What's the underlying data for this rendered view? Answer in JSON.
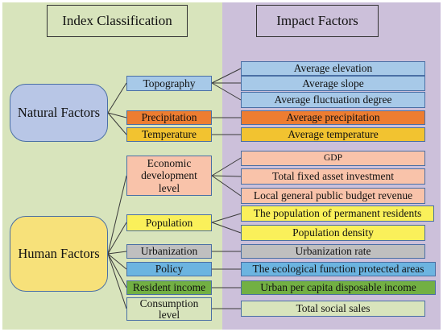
{
  "headers": {
    "left": "Index Classification",
    "right": "Impact Factors"
  },
  "groups": {
    "natural": "Natural  Factors",
    "human": "Human Factors"
  },
  "indices": {
    "topography": "Topography",
    "precipitation": "Precipitation",
    "temperature": "Temperature",
    "economic_line1": "Economic",
    "economic_line2": "development",
    "economic_line3": "level",
    "population": "Population",
    "urbanization": "Urbanization",
    "policy": "Policy",
    "resident_income": "Resident income",
    "consumption_line1": "Consumption",
    "consumption_line2": "level"
  },
  "factors": {
    "avg_elevation": "Average elevation",
    "avg_slope": "Average slope",
    "avg_fluctuation": "Average fluctuation degree",
    "avg_precipitation": "Average precipitation",
    "avg_temperature": "Average temperature",
    "gdp": "GDP",
    "fixed_asset": "Total fixed asset investment",
    "budget_revenue": "Local general public budget revenue",
    "permanent_residents": "The population of permanent residents",
    "population_density": "Population density",
    "urbanization_rate": "Urbanization rate",
    "ecological_areas": "The ecological function protected areas",
    "per_capita_income": "Urban per capita disposable income",
    "social_sales": "Total social sales"
  },
  "colors": {
    "left_panel": "#d8e4bc",
    "right_panel": "#ccc0da",
    "natural_group": "#b8c6e6",
    "human_group": "#f7e17a",
    "topography": "#a7c9e8",
    "precipitation": "#ed7d31",
    "temperature": "#f2c330",
    "economic": "#f9c3aa",
    "population": "#faf05a",
    "urbanization": "#bfbfbf",
    "policy": "#6cb4e0",
    "resident_income": "#72b043",
    "consumption": "#d8e4bc"
  }
}
